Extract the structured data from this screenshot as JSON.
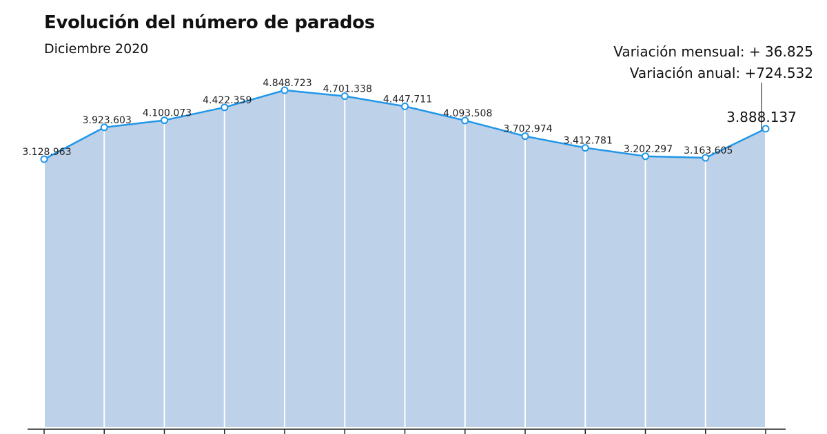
{
  "chart_data": {
    "type": "area",
    "title": "Evolución del número de parados",
    "subtitle": "Diciembre 2020",
    "annotation": {
      "monthly_variation": "Variación mensual: + 36.825",
      "annual_variation": "Variación anual: +724.532"
    },
    "values": [
      3128963,
      3923603,
      4100073,
      4422359,
      4848723,
      4701338,
      4447711,
      4093508,
      3702974,
      3412781,
      3202297,
      3163605,
      3888137
    ],
    "value_labels": [
      "3.128.963",
      "3.923.603",
      "4.100.073",
      "4.422.359",
      "4.848.723",
      "4.701.338",
      "4.447.711",
      "4.093.508",
      "3.702.974",
      "3.412.781",
      "3.202.297",
      "3.163.605",
      "3.888.137"
    ],
    "xlabel": "",
    "ylabel": "",
    "grid": false,
    "colors": {
      "line": "#2196e8",
      "area": "#bdd1e8",
      "point_fill": "#ffffff",
      "divider": "#ffffff",
      "axis": "#222222",
      "leader": "#333333"
    }
  }
}
